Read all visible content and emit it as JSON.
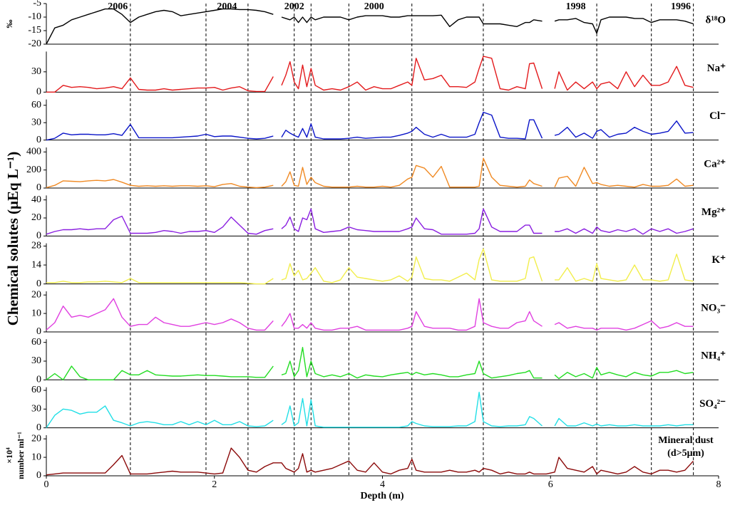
{
  "chart_data": {
    "type": "line",
    "xlabel": "Depth (m)",
    "ylabel": "Chemical solutes (μEq L⁻¹)",
    "xlim": [
      0,
      8
    ],
    "xticks": [
      0,
      2,
      4,
      6,
      8
    ],
    "x": [
      0,
      0.1,
      0.2,
      0.3,
      0.4,
      0.5,
      0.6,
      0.7,
      0.8,
      0.9,
      1.0,
      1.1,
      1.2,
      1.3,
      1.4,
      1.5,
      1.6,
      1.7,
      1.8,
      1.9,
      2.0,
      2.1,
      2.2,
      2.3,
      2.4,
      2.5,
      2.6,
      2.7,
      2.75,
      2.8,
      2.85,
      2.9,
      2.95,
      3.0,
      3.05,
      3.1,
      3.15,
      3.2,
      3.3,
      3.4,
      3.5,
      3.6,
      3.7,
      3.8,
      3.9,
      4.0,
      4.1,
      4.2,
      4.3,
      4.35,
      4.4,
      4.5,
      4.6,
      4.7,
      4.8,
      4.9,
      5.0,
      5.1,
      5.15,
      5.2,
      5.3,
      5.4,
      5.5,
      5.6,
      5.7,
      5.75,
      5.8,
      5.9,
      5.95,
      6.05,
      6.1,
      6.2,
      6.3,
      6.4,
      6.5,
      6.55,
      6.6,
      6.7,
      6.8,
      6.9,
      7.0,
      7.1,
      7.2,
      7.3,
      7.4,
      7.5,
      7.6,
      7.7
    ],
    "year_boundaries": [
      1.0,
      1.9,
      2.4,
      2.95,
      3.15,
      3.6,
      4.35,
      5.2,
      6.55,
      7.2,
      7.7
    ],
    "year_labels": [
      {
        "label": "2006",
        "depth": 0.85
      },
      {
        "label": "2004",
        "depth": 2.15
      },
      {
        "label": "2002",
        "depth": 2.95
      },
      {
        "label": "2000",
        "depth": 3.9
      },
      {
        "label": "1998",
        "depth": 6.3
      },
      {
        "label": "1996",
        "depth": 7.55
      }
    ],
    "series": [
      {
        "name": "δ¹⁸O",
        "ylabel_lines": [
          "‰"
        ],
        "color": "#000000",
        "ylim": [
          -20,
          -5
        ],
        "yticks": [
          -20,
          -15,
          -10,
          -5
        ],
        "values": [
          -20,
          -14,
          -13,
          -11,
          -10,
          -9,
          -8,
          -7,
          -7,
          -9,
          -12,
          -10,
          -9,
          -8,
          -7.5,
          -8,
          -9.5,
          -9,
          -8.5,
          -8,
          -7.5,
          -7,
          -7,
          -7.2,
          -7.2,
          -7.5,
          -8,
          -9,
          null,
          -10,
          -10.5,
          -11,
          -10,
          -12,
          -10,
          -12,
          -10,
          -11,
          -10,
          -10,
          -10,
          -11,
          -10,
          -9.5,
          -9.5,
          -9.5,
          -10,
          -10,
          -9.5,
          -9.5,
          -9.5,
          -9.5,
          -9.5,
          -9.3,
          -13.5,
          -11,
          -10,
          -10,
          -10,
          -12.5,
          -12.5,
          -12.5,
          -13,
          -13.5,
          -12,
          -12,
          -11,
          -11.5,
          null,
          -11.5,
          -11,
          -11,
          -10.5,
          -12,
          -12.5,
          -16,
          -11,
          -10,
          -10,
          -10,
          -10.5,
          -10.5,
          -12,
          -11,
          -11,
          -11,
          -11.5,
          -12.5
        ]
      },
      {
        "name": "Na⁺",
        "color": "#e31a1c",
        "ylim": [
          0,
          60
        ],
        "yticks": [
          0,
          30
        ],
        "values": [
          0,
          0,
          10,
          7,
          8,
          7,
          5,
          6,
          8,
          5,
          21,
          4,
          3,
          3,
          5,
          3,
          4,
          5,
          6,
          6,
          7,
          3,
          6,
          8,
          2,
          1,
          1,
          23,
          null,
          10,
          25,
          45,
          15,
          5,
          40,
          8,
          35,
          10,
          3,
          5,
          3,
          8,
          15,
          3,
          8,
          5,
          5,
          10,
          15,
          10,
          50,
          18,
          20,
          25,
          8,
          8,
          7,
          15,
          35,
          53,
          50,
          5,
          3,
          8,
          5,
          42,
          43,
          5,
          null,
          5,
          30,
          3,
          15,
          5,
          15,
          5,
          12,
          15,
          5,
          30,
          8,
          25,
          10,
          10,
          15,
          38,
          10,
          7
        ]
      },
      {
        "name": "Cl⁻",
        "color": "#0a14c8",
        "ylim": [
          0,
          70
        ],
        "yticks": [
          0,
          30,
          60
        ],
        "values": [
          0,
          3,
          12,
          9,
          10,
          10,
          9,
          9,
          11,
          8,
          27,
          4,
          4,
          4,
          4,
          4,
          5,
          6,
          7,
          10,
          6,
          7,
          7,
          5,
          3,
          2,
          3,
          7,
          null,
          5,
          17,
          12,
          8,
          5,
          20,
          5,
          28,
          5,
          2,
          2,
          2,
          3,
          5,
          3,
          4,
          5,
          5,
          8,
          12,
          15,
          22,
          10,
          5,
          10,
          5,
          5,
          5,
          10,
          30,
          48,
          43,
          5,
          3,
          3,
          2,
          35,
          35,
          3,
          null,
          8,
          10,
          22,
          5,
          12,
          3,
          15,
          18,
          5,
          10,
          12,
          22,
          15,
          10,
          12,
          15,
          33,
          12,
          13
        ]
      },
      {
        "name": "Ca²⁺",
        "color": "#f08a24",
        "ylim": [
          0,
          450
        ],
        "yticks": [
          0,
          200,
          400
        ],
        "values": [
          5,
          30,
          80,
          75,
          70,
          80,
          85,
          80,
          95,
          65,
          30,
          20,
          25,
          20,
          25,
          20,
          25,
          25,
          20,
          25,
          15,
          40,
          50,
          20,
          10,
          5,
          10,
          30,
          null,
          20,
          70,
          180,
          30,
          20,
          230,
          40,
          120,
          60,
          20,
          10,
          10,
          10,
          20,
          10,
          10,
          20,
          10,
          30,
          100,
          120,
          250,
          220,
          120,
          240,
          10,
          10,
          10,
          10,
          20,
          330,
          120,
          30,
          20,
          10,
          20,
          90,
          50,
          20,
          null,
          10,
          110,
          130,
          20,
          230,
          50,
          60,
          40,
          20,
          30,
          20,
          10,
          40,
          20,
          20,
          30,
          100,
          20,
          30
        ]
      },
      {
        "name": "Mg²⁺",
        "color": "#8a1ee0",
        "ylim": [
          0,
          45
        ],
        "yticks": [
          0,
          20,
          40
        ],
        "values": [
          2,
          5,
          7,
          7,
          8,
          7,
          8,
          8,
          18,
          22,
          3,
          3,
          3,
          4,
          6,
          5,
          3,
          5,
          5,
          6,
          4,
          10,
          21,
          12,
          3,
          2,
          6,
          8,
          null,
          8,
          12,
          21,
          8,
          5,
          20,
          18,
          30,
          8,
          4,
          5,
          6,
          10,
          7,
          6,
          5,
          5,
          5,
          5,
          8,
          10,
          20,
          8,
          7,
          2,
          2,
          2,
          2,
          3,
          8,
          30,
          10,
          5,
          5,
          5,
          12,
          12,
          3,
          3,
          null,
          5,
          5,
          8,
          3,
          8,
          3,
          10,
          6,
          4,
          7,
          5,
          8,
          2,
          8,
          5,
          8,
          3,
          5,
          8
        ]
      },
      {
        "name": "K⁺",
        "color": "#f2ee4c",
        "ylim": [
          0,
          30
        ],
        "yticks": [
          0,
          14,
          28
        ],
        "values": [
          1,
          1,
          2,
          1,
          1,
          1.5,
          1.5,
          2,
          1.5,
          1,
          4,
          1,
          1,
          1,
          1,
          1,
          1,
          1,
          1,
          1,
          1,
          1,
          1,
          1,
          0.5,
          0,
          0,
          4,
          null,
          3,
          4,
          15,
          6,
          10,
          3,
          4,
          8,
          12,
          2,
          1,
          3,
          12,
          5,
          4,
          3,
          2,
          3,
          6,
          2,
          5,
          20,
          4,
          3,
          3,
          2,
          5,
          8,
          3,
          18,
          26,
          3,
          2,
          2,
          2,
          4,
          19,
          20,
          2,
          null,
          3,
          3,
          12,
          2,
          4,
          2,
          15,
          4,
          3,
          2,
          3,
          14,
          3,
          3,
          2,
          3,
          22,
          3,
          2
        ]
      },
      {
        "name": "NO₃⁻",
        "color": "#e040e0",
        "ylim": [
          0,
          22
        ],
        "yticks": [
          0,
          10,
          20
        ],
        "values": [
          1,
          5,
          14,
          8,
          9,
          8,
          10,
          12,
          18,
          8,
          3,
          4,
          4,
          8,
          5,
          4,
          3,
          3,
          4,
          5,
          4,
          5,
          7,
          5,
          2,
          1,
          1,
          6,
          null,
          3,
          6,
          10,
          2,
          2,
          4,
          2,
          5,
          2,
          1,
          1,
          2,
          2,
          3,
          1,
          1,
          1,
          1,
          1,
          2,
          3,
          11,
          3,
          2,
          2,
          2,
          1,
          1,
          3,
          18,
          5,
          3,
          2,
          2,
          5,
          6,
          11,
          6,
          3,
          null,
          4,
          5,
          2,
          3,
          2,
          2,
          1,
          2,
          2,
          2,
          1,
          2,
          4,
          6,
          2,
          3,
          5,
          3,
          3
        ]
      },
      {
        "name": "NH₄⁺",
        "color": "#22dd22",
        "ylim": [
          0,
          65
        ],
        "yticks": [
          0,
          30,
          60
        ],
        "values": [
          0,
          10,
          0,
          22,
          5,
          0,
          0,
          0,
          0,
          15,
          8,
          8,
          15,
          8,
          7,
          6,
          6,
          7,
          8,
          7,
          7,
          6,
          5,
          5,
          5,
          4,
          4,
          22,
          null,
          8,
          10,
          30,
          5,
          15,
          52,
          5,
          30,
          10,
          5,
          8,
          5,
          10,
          3,
          8,
          6,
          5,
          8,
          10,
          12,
          8,
          12,
          8,
          10,
          8,
          5,
          5,
          8,
          10,
          30,
          10,
          3,
          5,
          7,
          10,
          12,
          15,
          3,
          3,
          null,
          8,
          2,
          12,
          5,
          10,
          3,
          20,
          8,
          12,
          8,
          5,
          12,
          8,
          6,
          12,
          12,
          15,
          10,
          12
        ]
      },
      {
        "name": "SO₄²⁻",
        "color": "#22dfe6",
        "ylim": [
          0,
          65
        ],
        "yticks": [
          0,
          30,
          60
        ],
        "values": [
          0,
          20,
          30,
          28,
          22,
          25,
          25,
          35,
          12,
          8,
          3,
          8,
          10,
          8,
          5,
          5,
          10,
          5,
          10,
          5,
          12,
          5,
          5,
          10,
          3,
          2,
          3,
          12,
          null,
          5,
          10,
          35,
          3,
          8,
          47,
          3,
          45,
          3,
          1,
          1,
          1,
          1,
          1,
          1,
          1,
          1,
          1,
          1,
          3,
          10,
          7,
          3,
          2,
          2,
          2,
          3,
          3,
          10,
          57,
          10,
          3,
          2,
          3,
          3,
          5,
          18,
          15,
          3,
          null,
          3,
          15,
          3,
          3,
          8,
          3,
          6,
          3,
          5,
          3,
          3,
          5,
          3,
          3,
          3,
          5,
          3,
          5,
          5
        ]
      },
      {
        "name": "Mineral dust",
        "name_line2": "(d>5μm)",
        "ylabel_lines": [
          "×10⁴",
          "number ml⁻¹"
        ],
        "color": "#8b0a0a",
        "ylim": [
          0,
          22
        ],
        "yticks": [
          0,
          10,
          20
        ],
        "values": [
          0.5,
          1,
          1.5,
          1.5,
          1.5,
          1.5,
          1.5,
          1.5,
          6,
          11,
          1,
          1,
          1,
          1.5,
          2,
          2.5,
          2,
          2,
          2,
          1.5,
          1,
          1.5,
          15,
          10,
          3,
          2,
          5,
          7,
          7,
          7,
          4,
          3,
          2,
          4,
          12,
          2,
          3,
          2,
          3,
          4,
          6,
          8,
          3,
          2,
          7,
          2,
          1,
          3,
          4,
          9,
          3,
          2,
          2,
          2,
          3,
          2,
          2,
          3,
          2,
          4,
          3,
          1,
          2,
          1,
          1,
          2,
          1,
          1,
          1,
          2,
          10,
          4,
          3,
          2,
          5,
          1,
          3,
          2,
          1,
          2,
          5,
          2,
          1,
          3,
          3,
          2,
          3,
          8
        ]
      }
    ]
  }
}
